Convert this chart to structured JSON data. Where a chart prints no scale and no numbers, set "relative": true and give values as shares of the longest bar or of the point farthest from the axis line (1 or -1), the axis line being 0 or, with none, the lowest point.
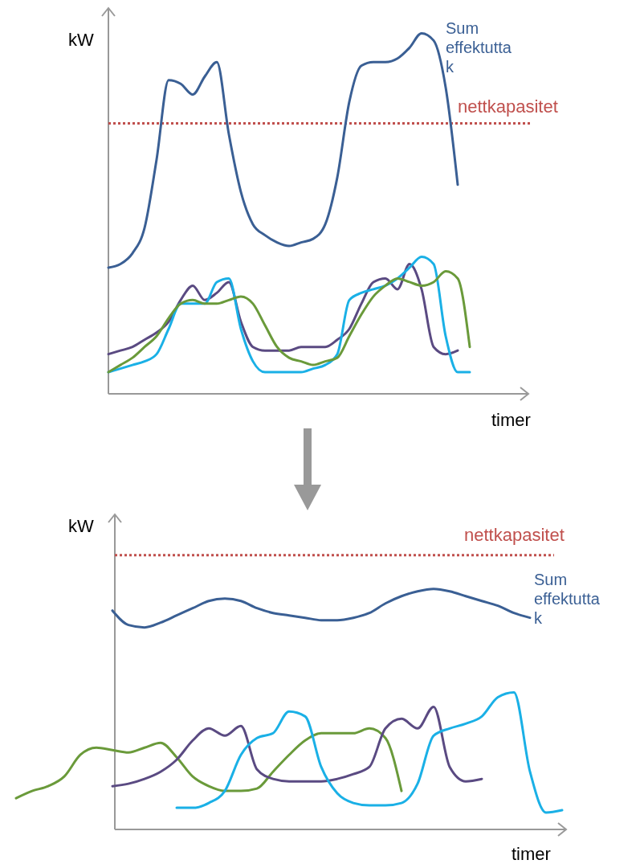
{
  "chart_data": [
    {
      "type": "line",
      "relative": true,
      "ylabel": "kW",
      "xlabel": "timer",
      "categories": [
        null,
        null,
        null,
        null,
        null,
        null,
        null,
        null,
        null,
        null,
        null,
        null,
        null,
        null,
        null,
        null,
        null,
        null,
        null,
        null,
        null,
        null,
        null,
        null,
        null,
        null,
        null,
        null,
        null,
        null,
        null
      ],
      "series": [
        {
          "name": "Sum effektuttak",
          "color": "#3a5f94",
          "values": [
            0.35,
            0.36,
            0.39,
            0.46,
            0.65,
            0.87,
            0.86,
            0.83,
            0.88,
            0.92,
            0.72,
            0.56,
            0.47,
            0.44,
            0.42,
            0.41,
            0.42,
            0.43,
            0.47,
            0.6,
            0.81,
            0.91,
            0.92,
            0.92,
            0.93,
            0.96,
            1.0,
            0.98,
            0.85,
            0.58,
            null
          ]
        },
        {
          "color": "#5a4a82",
          "values": [
            0.11,
            0.12,
            0.13,
            0.15,
            0.17,
            0.2,
            0.26,
            0.3,
            0.26,
            0.28,
            0.31,
            0.2,
            0.13,
            0.12,
            0.12,
            0.12,
            0.13,
            0.13,
            0.13,
            0.15,
            0.18,
            0.25,
            0.31,
            0.32,
            0.29,
            0.36,
            0.29,
            0.13,
            0.11,
            0.12,
            null
          ]
        },
        {
          "color": "#1ab0e6",
          "values": [
            0.06,
            0.07,
            0.08,
            0.09,
            0.11,
            0.18,
            0.25,
            0.25,
            0.25,
            0.31,
            0.32,
            0.18,
            0.09,
            0.06,
            0.06,
            0.06,
            0.06,
            0.07,
            0.08,
            0.11,
            0.26,
            0.28,
            0.29,
            0.3,
            0.32,
            0.35,
            0.38,
            0.36,
            0.16,
            0.06,
            0.06
          ]
        },
        {
          "color": "#6a9a3a",
          "values": [
            0.06,
            0.08,
            0.1,
            0.13,
            0.16,
            0.21,
            0.25,
            0.26,
            0.25,
            0.25,
            0.26,
            0.27,
            0.25,
            0.19,
            0.13,
            0.1,
            0.09,
            0.08,
            0.09,
            0.1,
            0.16,
            0.22,
            0.27,
            0.3,
            0.32,
            0.31,
            0.3,
            0.31,
            0.34,
            0.32,
            0.13
          ]
        }
      ],
      "ref_lines": [
        {
          "axis": "y",
          "value": 0.75,
          "label": "nettkapasitet",
          "color": "#c0504d",
          "line_style": "dotted"
        }
      ]
    },
    {
      "type": "line",
      "relative": true,
      "ylabel": "kW",
      "xlabel": "timer",
      "categories": [
        null,
        null,
        null,
        null,
        null,
        null,
        null,
        null,
        null,
        null,
        null,
        null,
        null,
        null,
        null,
        null,
        null,
        null,
        null,
        null,
        null,
        null,
        null,
        null,
        null,
        null,
        null,
        null,
        null,
        null,
        null,
        null,
        null,
        null,
        null
      ],
      "series": [
        {
          "name": "Sum effektuttak",
          "color": "#3a5f94",
          "values": [
            null,
            null,
            null,
            null,
            null,
            null,
            0.91,
            0.85,
            0.84,
            0.86,
            0.89,
            0.92,
            0.95,
            0.96,
            0.95,
            0.92,
            0.9,
            0.89,
            0.88,
            0.87,
            0.87,
            0.88,
            0.9,
            0.94,
            0.97,
            0.99,
            1.0,
            0.99,
            0.97,
            0.95,
            0.93,
            0.9,
            0.88,
            null,
            null
          ]
        },
        {
          "color": "#6a9a3a",
          "values": [
            0.13,
            0.16,
            0.18,
            0.22,
            0.31,
            0.34,
            0.33,
            0.32,
            0.34,
            0.36,
            0.3,
            0.22,
            0.18,
            0.16,
            0.16,
            0.17,
            0.24,
            0.31,
            0.37,
            0.4,
            0.4,
            0.4,
            0.42,
            0.38,
            0.16,
            null,
            null,
            null,
            null,
            null,
            null,
            null,
            null,
            null,
            null
          ]
        },
        {
          "color": "#5a4a82",
          "values": [
            null,
            null,
            null,
            null,
            null,
            null,
            0.18,
            0.19,
            0.21,
            0.24,
            0.29,
            0.37,
            0.42,
            0.39,
            0.43,
            0.25,
            0.21,
            0.2,
            0.2,
            0.2,
            0.21,
            0.23,
            0.26,
            0.42,
            0.46,
            0.42,
            0.51,
            0.26,
            0.2,
            0.21,
            null,
            null,
            null,
            null,
            null
          ]
        },
        {
          "color": "#1ab0e6",
          "values": [
            null,
            null,
            null,
            null,
            null,
            null,
            null,
            null,
            null,
            null,
            0.09,
            0.09,
            0.11,
            0.16,
            0.31,
            0.38,
            0.4,
            0.49,
            0.47,
            0.26,
            0.15,
            0.11,
            0.1,
            0.1,
            0.11,
            0.19,
            0.39,
            0.42,
            0.44,
            0.47,
            0.55,
            0.57,
            0.24,
            0.07,
            0.08
          ]
        }
      ],
      "ref_lines": [
        {
          "axis": "y",
          "value": 1.14,
          "label": "nettkapasitet",
          "color": "#c0504d",
          "line_style": "dotted"
        }
      ]
    }
  ]
}
